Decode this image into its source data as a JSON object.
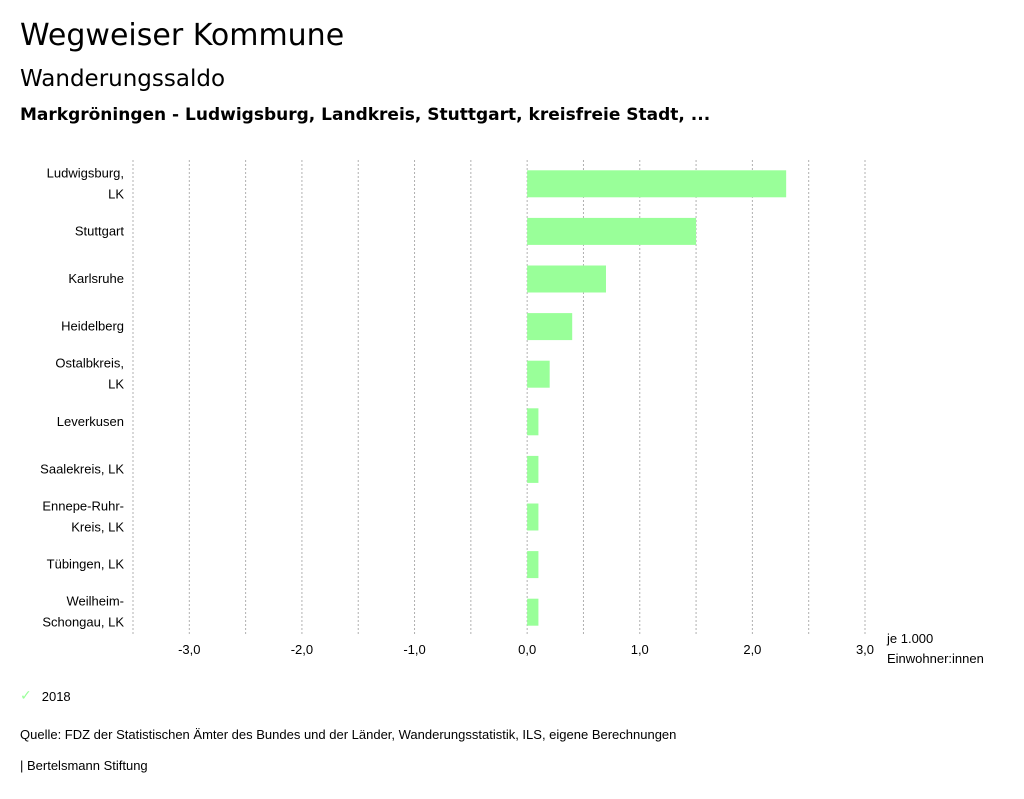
{
  "header": {
    "title": "Wegweiser Kommune",
    "subtitle": "Wanderungssaldo",
    "region": "Markgröningen - Ludwigsburg, Landkreis, Stuttgart, kreisfreie Stadt, ..."
  },
  "chart_data": {
    "type": "bar",
    "orientation": "horizontal",
    "categories": [
      [
        "Ludwigsburg,",
        "LK"
      ],
      [
        "Stuttgart"
      ],
      [
        "Karlsruhe"
      ],
      [
        "Heidelberg"
      ],
      [
        "Ostalbkreis,",
        "LK"
      ],
      [
        "Leverkusen"
      ],
      [
        "Saalekreis, LK"
      ],
      [
        "Ennepe-Ruhr-",
        "Kreis, LK"
      ],
      [
        "Tübingen, LK"
      ],
      [
        "Weilheim-",
        "Schongau, LK"
      ]
    ],
    "series": [
      {
        "name": "2018",
        "color": "#99ff99",
        "values": [
          2.3,
          1.5,
          0.7,
          0.4,
          0.2,
          0.1,
          0.1,
          0.1,
          0.1,
          0.1
        ]
      }
    ],
    "xlim": [
      -3.5,
      3.0
    ],
    "xticks": [
      -3.0,
      -2.0,
      -1.0,
      0.0,
      1.0,
      2.0,
      3.0
    ],
    "xtick_labels": [
      "-3,0",
      "-2,0",
      "-1,0",
      "0,0",
      "1,0",
      "2,0",
      "3,0"
    ],
    "gridline_step": 0.5,
    "unit_label": [
      "je 1.000",
      "Einwohner:innen"
    ],
    "grid": true,
    "legend_position": "bottom-left"
  },
  "legend": {
    "label": "2018",
    "color": "#99ff99"
  },
  "source": "Quelle: FDZ der Statistischen Ämter des Bundes und der Länder, Wanderungsstatistik, ILS, eigene Berechnungen",
  "footer": "| Bertelsmann Stiftung"
}
